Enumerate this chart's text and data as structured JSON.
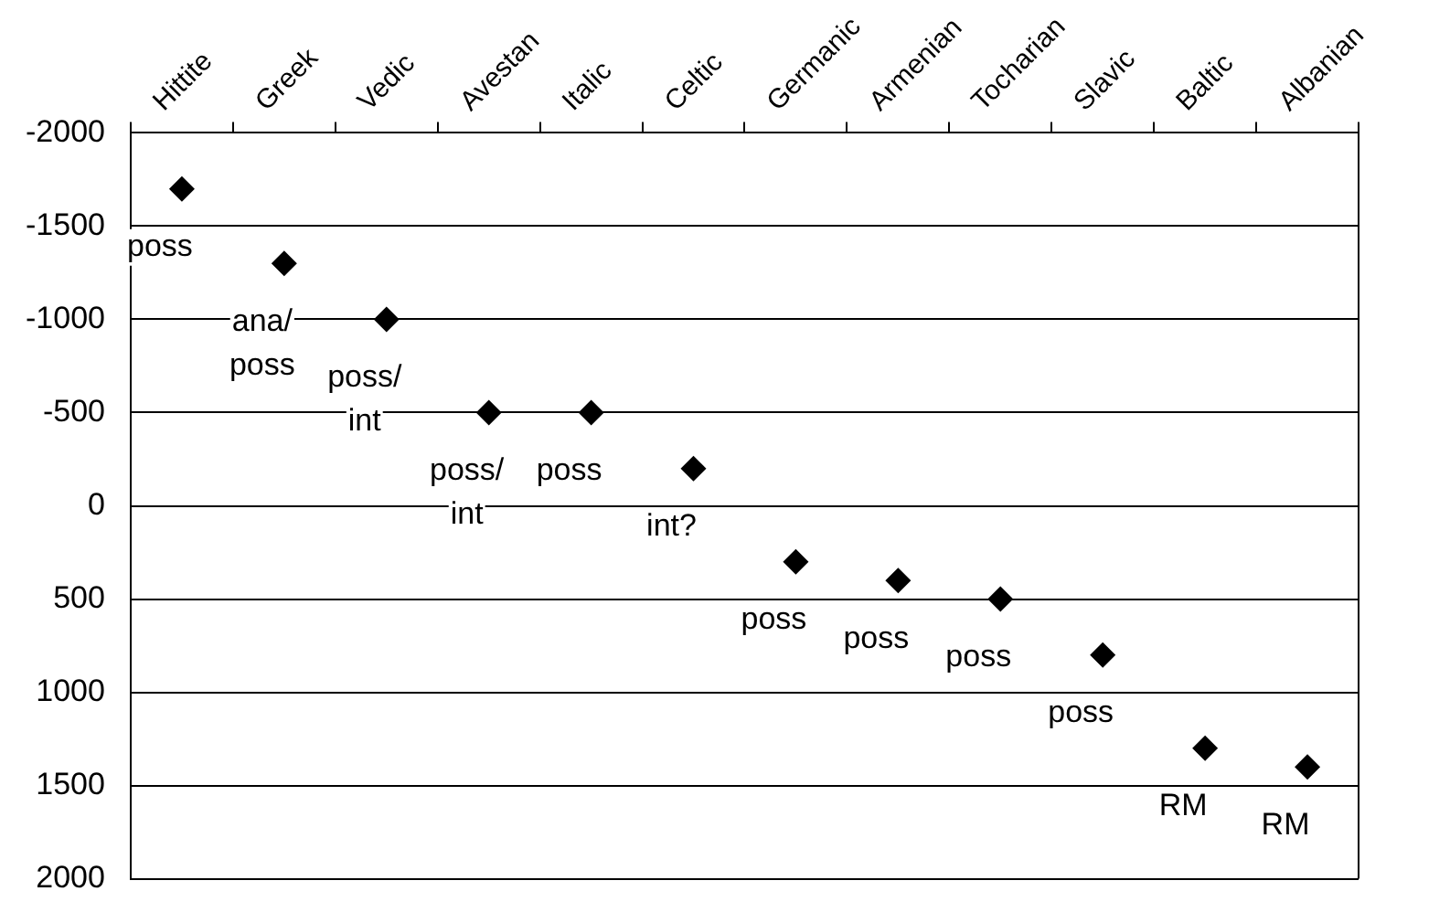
{
  "chart_data": {
    "type": "scatter",
    "categories": [
      "Hittite",
      "Greek",
      "Vedic",
      "Avestan",
      "Italic",
      "Celtic",
      "Germanic",
      "Armenian",
      "Tocharian",
      "Slavic",
      "Baltic",
      "Albanian"
    ],
    "values": [
      -1700,
      -1300,
      -1000,
      -500,
      -500,
      -200,
      300,
      400,
      500,
      800,
      1300,
      1400
    ],
    "color": "#000000",
    "marker": "diamond",
    "legend": false,
    "grid": "y",
    "ylim": [
      2000,
      -2000
    ],
    "yticks": [
      -2000,
      -1500,
      -1000,
      -500,
      0,
      500,
      1000,
      1500,
      2000
    ],
    "annotations": [
      {
        "text": "poss",
        "x": "Hittite",
        "y": -1700
      },
      {
        "text": "ana/\nposs",
        "x": "Greek",
        "y": -1300
      },
      {
        "text": "poss/\nint",
        "x": "Vedic",
        "y": -1000
      },
      {
        "text": "poss/\nint",
        "x": "Avestan",
        "y": -500
      },
      {
        "text": "poss",
        "x": "Italic",
        "y": -500
      },
      {
        "text": "int?",
        "x": "Celtic",
        "y": -200
      },
      {
        "text": "poss",
        "x": "Germanic",
        "y": 300
      },
      {
        "text": "poss",
        "x": "Armenian",
        "y": 400
      },
      {
        "text": "poss",
        "x": "Tocharian",
        "y": 500
      },
      {
        "text": "poss",
        "x": "Slavic",
        "y": 800
      },
      {
        "text": "RM",
        "x": "Baltic",
        "y": 1300
      },
      {
        "text": "RM",
        "x": "Albanian",
        "y": 1400
      }
    ]
  }
}
